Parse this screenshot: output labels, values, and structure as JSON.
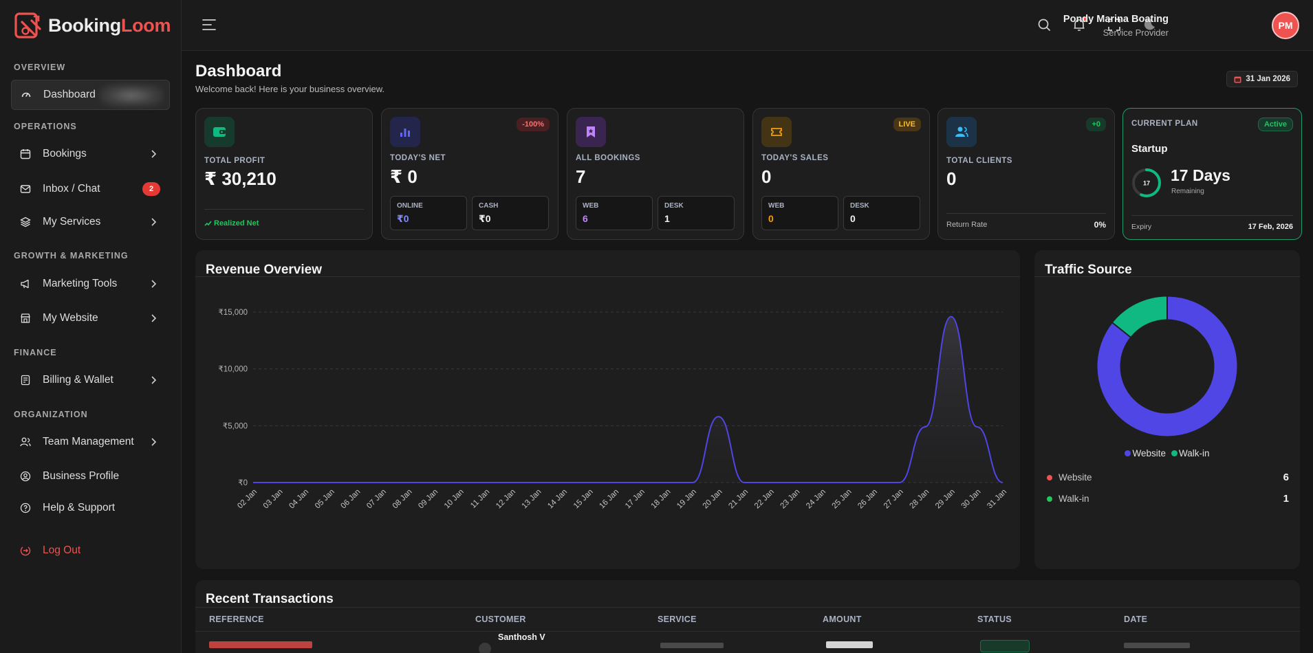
{
  "brand": {
    "name_part1": "Booking",
    "name_part2": "Loom"
  },
  "sidebar": {
    "sections": {
      "overview": "OVERVIEW",
      "operations": "OPERATIONS",
      "growth": "GROWTH & MARKETING",
      "finance": "FINANCE",
      "organization": "ORGANIZATION"
    },
    "items": {
      "dashboard": "Dashboard",
      "bookings": "Bookings",
      "inbox": "Inbox / Chat",
      "inbox_badge": "2",
      "services": "My Services",
      "marketing": "Marketing Tools",
      "website": "My Website",
      "billing": "Billing & Wallet",
      "team": "Team Management",
      "profile": "Business Profile",
      "help": "Help & Support",
      "logout": "Log Out"
    }
  },
  "topbar": {
    "user_name": "Pondy Marina Boating",
    "user_role": "Service Provider",
    "avatar_initials": "PM"
  },
  "page": {
    "title": "Dashboard",
    "subtitle": "Welcome back! Here is your business overview.",
    "date": "31 Jan 2026"
  },
  "cards": {
    "profit": {
      "label": "TOTAL PROFIT",
      "value": "₹ 30,210",
      "footer": "Realized Net"
    },
    "net": {
      "label": "TODAY'S NET",
      "value": "₹ 0",
      "pill": "-100%",
      "online_label": "ONLINE",
      "online_value": "₹0",
      "cash_label": "CASH",
      "cash_value": "₹0"
    },
    "bookings": {
      "label": "ALL BOOKINGS",
      "value": "7",
      "web_label": "WEB",
      "web_value": "6",
      "desk_label": "DESK",
      "desk_value": "1"
    },
    "sales": {
      "label": "TODAY'S SALES",
      "value": "0",
      "pill": "LIVE",
      "web_label": "WEB",
      "web_value": "0",
      "desk_label": "DESK",
      "desk_value": "0"
    },
    "clients": {
      "label": "TOTAL CLIENTS",
      "value": "0",
      "pill": "+0",
      "rate_label": "Return Rate",
      "rate_value": "0%"
    },
    "plan": {
      "label": "CURRENT PLAN",
      "status": "Active",
      "name": "Startup",
      "ring_value": "17",
      "days": "17 Days",
      "remaining": "Remaining",
      "expiry_label": "Expiry",
      "expiry_value": "17 Feb, 2026"
    }
  },
  "revenue": {
    "title": "Revenue Overview",
    "y_ticks": [
      "₹15,000",
      "₹10,000",
      "₹5,000",
      "₹0"
    ],
    "x_ticks": [
      "02 Jan",
      "03 Jan",
      "04 Jan",
      "05 Jan",
      "06 Jan",
      "07 Jan",
      "08 Jan",
      "09 Jan",
      "10 Jan",
      "11 Jan",
      "12 Jan",
      "13 Jan",
      "14 Jan",
      "15 Jan",
      "16 Jan",
      "17 Jan",
      "18 Jan",
      "19 Jan",
      "20 Jan",
      "21 Jan",
      "22 Jan",
      "23 Jan",
      "24 Jan",
      "25 Jan",
      "26 Jan",
      "27 Jan",
      "28 Jan",
      "29 Jan",
      "30 Jan",
      "31 Jan"
    ]
  },
  "chart_data": {
    "type": "area",
    "title": "Revenue Overview",
    "x": [
      "02 Jan",
      "03 Jan",
      "04 Jan",
      "05 Jan",
      "06 Jan",
      "07 Jan",
      "08 Jan",
      "09 Jan",
      "10 Jan",
      "11 Jan",
      "12 Jan",
      "13 Jan",
      "14 Jan",
      "15 Jan",
      "16 Jan",
      "17 Jan",
      "18 Jan",
      "19 Jan",
      "20 Jan",
      "21 Jan",
      "22 Jan",
      "23 Jan",
      "24 Jan",
      "25 Jan",
      "26 Jan",
      "27 Jan",
      "28 Jan",
      "29 Jan",
      "30 Jan",
      "31 Jan"
    ],
    "values": [
      0,
      0,
      0,
      0,
      0,
      0,
      0,
      0,
      0,
      0,
      0,
      0,
      0,
      0,
      0,
      0,
      0,
      0,
      5800,
      0,
      0,
      0,
      0,
      0,
      0,
      0,
      4900,
      14600,
      4900,
      0
    ],
    "ylim": [
      0,
      15000
    ],
    "yticks": [
      0,
      5000,
      10000,
      15000
    ],
    "grid": true
  },
  "traffic": {
    "title": "Traffic Source",
    "legend": [
      "Website",
      "Walk-in"
    ],
    "rows": [
      {
        "name": "Website",
        "value": "6"
      },
      {
        "name": "Walk-in",
        "value": "1"
      }
    ],
    "donut": {
      "type": "pie",
      "labels": [
        "Website",
        "Walk-in"
      ],
      "values": [
        6,
        1
      ],
      "colors": [
        "#4f46e5",
        "#10b981"
      ]
    }
  },
  "transactions": {
    "title": "Recent Transactions",
    "headers": {
      "reference": "REFERENCE",
      "customer": "CUSTOMER",
      "service": "SERVICE",
      "amount": "AMOUNT",
      "status": "STATUS",
      "date": "DATE"
    },
    "first_customer": "Santhosh V"
  }
}
